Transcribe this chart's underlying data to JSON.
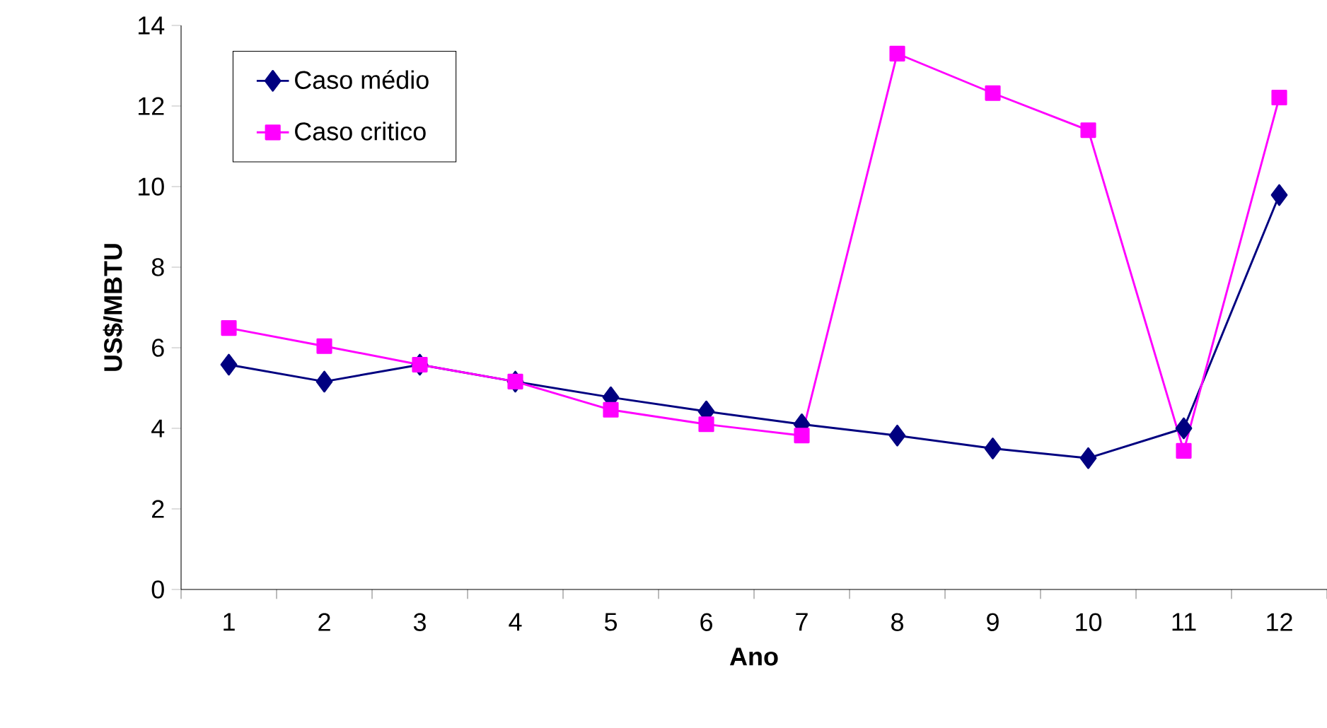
{
  "chart_data": {
    "type": "line",
    "xlabel": "Ano",
    "ylabel": "US$/MBTU",
    "categories": [
      "1",
      "2",
      "3",
      "4",
      "5",
      "6",
      "7",
      "8",
      "9",
      "10",
      "11",
      "12"
    ],
    "series": [
      {
        "name": "Caso médio",
        "color": "#000080",
        "marker": "diamond",
        "values": [
          5.58,
          5.16,
          5.58,
          5.16,
          4.77,
          4.42,
          4.1,
          3.82,
          3.5,
          3.26,
          4.0,
          9.79
        ]
      },
      {
        "name": "Caso critico",
        "color": "#ff00ff",
        "marker": "square",
        "values": [
          6.49,
          6.04,
          5.58,
          5.16,
          4.46,
          4.1,
          3.82,
          13.3,
          12.32,
          11.4,
          3.44,
          12.21
        ]
      }
    ],
    "ylim": [
      0,
      14
    ],
    "yticks": [
      0,
      2,
      4,
      6,
      8,
      10,
      12,
      14
    ],
    "legend": "top left"
  }
}
